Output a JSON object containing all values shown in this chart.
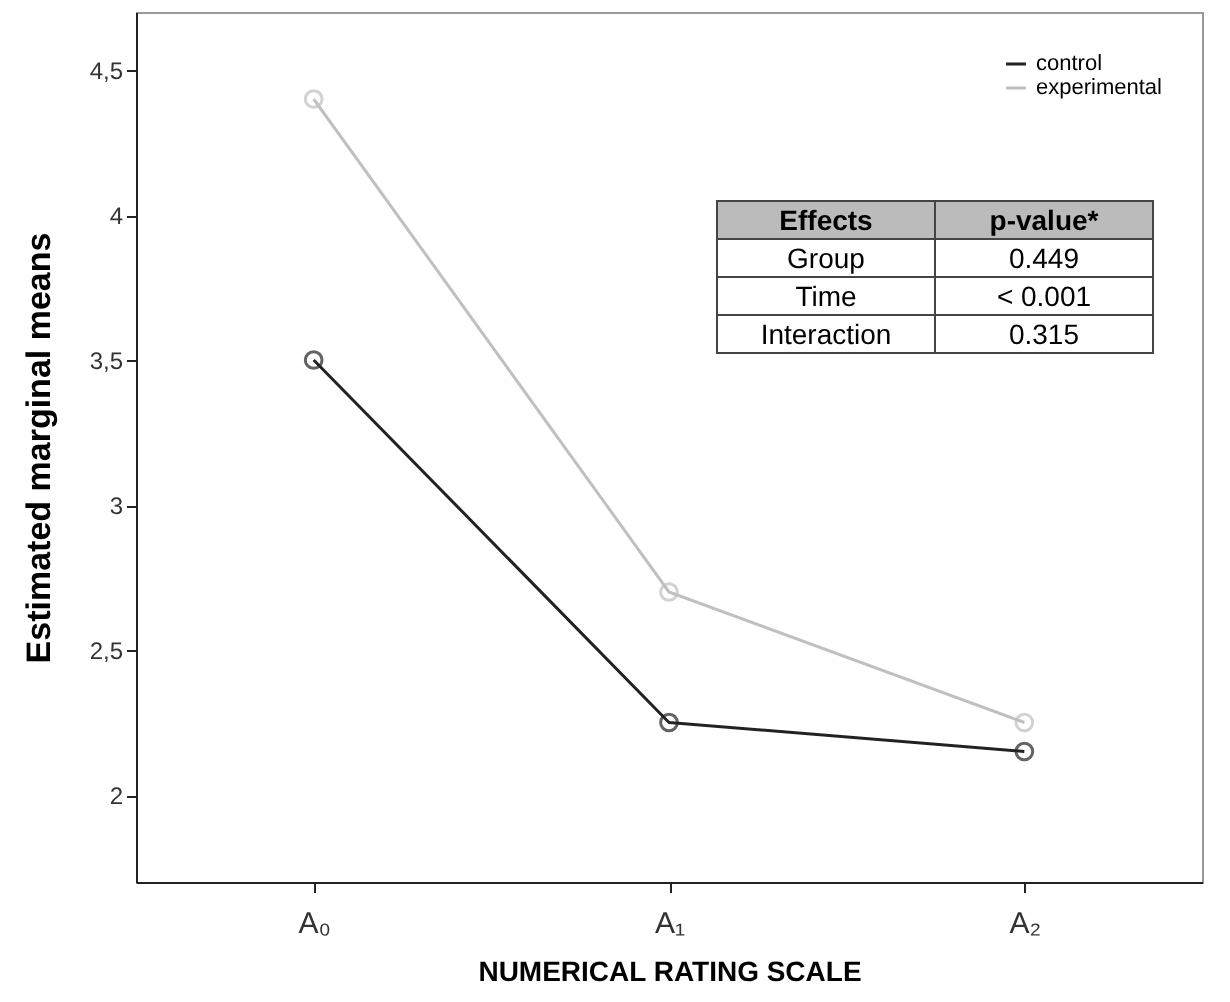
{
  "chart_data": {
    "type": "line",
    "xlabel": "NUMERICAL RATING SCALE",
    "ylabel": "Estimated marginal means",
    "categories": [
      "A₀",
      "A₁",
      "A₂"
    ],
    "series": [
      {
        "name": "control",
        "color": "#222222",
        "values": [
          3.5,
          2.25,
          2.15
        ]
      },
      {
        "name": "experimental",
        "color": "#c0c0c0",
        "values": [
          4.4,
          2.7,
          2.25
        ]
      }
    ],
    "ylim": [
      1.7,
      4.7
    ],
    "yticks": [
      2,
      {
        "value": 2.5,
        "label": "2,5"
      },
      3,
      {
        "value": 3.5,
        "label": "3,5"
      },
      4,
      {
        "value": 4.5,
        "label": "4,5"
      }
    ],
    "grid": false,
    "legend": "top right",
    "marker": "circle",
    "line_style": "solid",
    "annotations": [
      "Effects",
      "p-value*",
      "Group",
      "0.449",
      "Time",
      "< 0.001",
      "Interaction",
      "0.315"
    ]
  }
}
